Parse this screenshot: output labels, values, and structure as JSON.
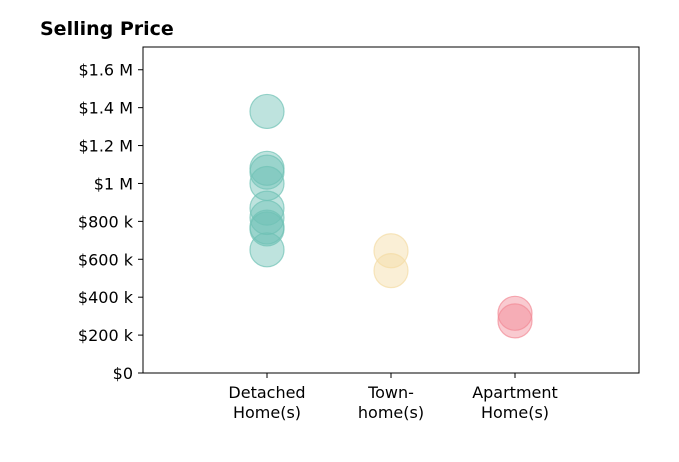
{
  "chart_data": {
    "type": "scatter",
    "title": "Selling Price",
    "xlabel": "",
    "ylabel": "",
    "ylim": [
      0,
      1720000
    ],
    "y_ticks": [
      {
        "value": 0,
        "label": "$0"
      },
      {
        "value": 200000,
        "label": "$200 k"
      },
      {
        "value": 400000,
        "label": "$400 k"
      },
      {
        "value": 600000,
        "label": "$600 k"
      },
      {
        "value": 800000,
        "label": "$800 k"
      },
      {
        "value": 1000000,
        "label": "$1 M"
      },
      {
        "value": 1200000,
        "label": "$1.2 M"
      },
      {
        "value": 1400000,
        "label": "$1.4 M"
      },
      {
        "value": 1600000,
        "label": "$1.6 M"
      }
    ],
    "categories": [
      {
        "line1": "Detached",
        "line2": "Home(s)"
      },
      {
        "line1": "Town-",
        "line2": "home(s)"
      },
      {
        "line1": "Apartment",
        "line2": "Home(s)"
      }
    ],
    "grid": false,
    "series": [
      {
        "category_index": 0,
        "color": "#6fc2b5",
        "values": [
          1380000,
          1080000,
          1060000,
          1000000,
          870000,
          820000,
          770000,
          760000,
          650000
        ]
      },
      {
        "category_index": 1,
        "color": "#f4dca4",
        "values": [
          645000,
          540000
        ]
      },
      {
        "category_index": 2,
        "color": "#f28a96",
        "values": [
          315000,
          275000
        ]
      }
    ]
  }
}
